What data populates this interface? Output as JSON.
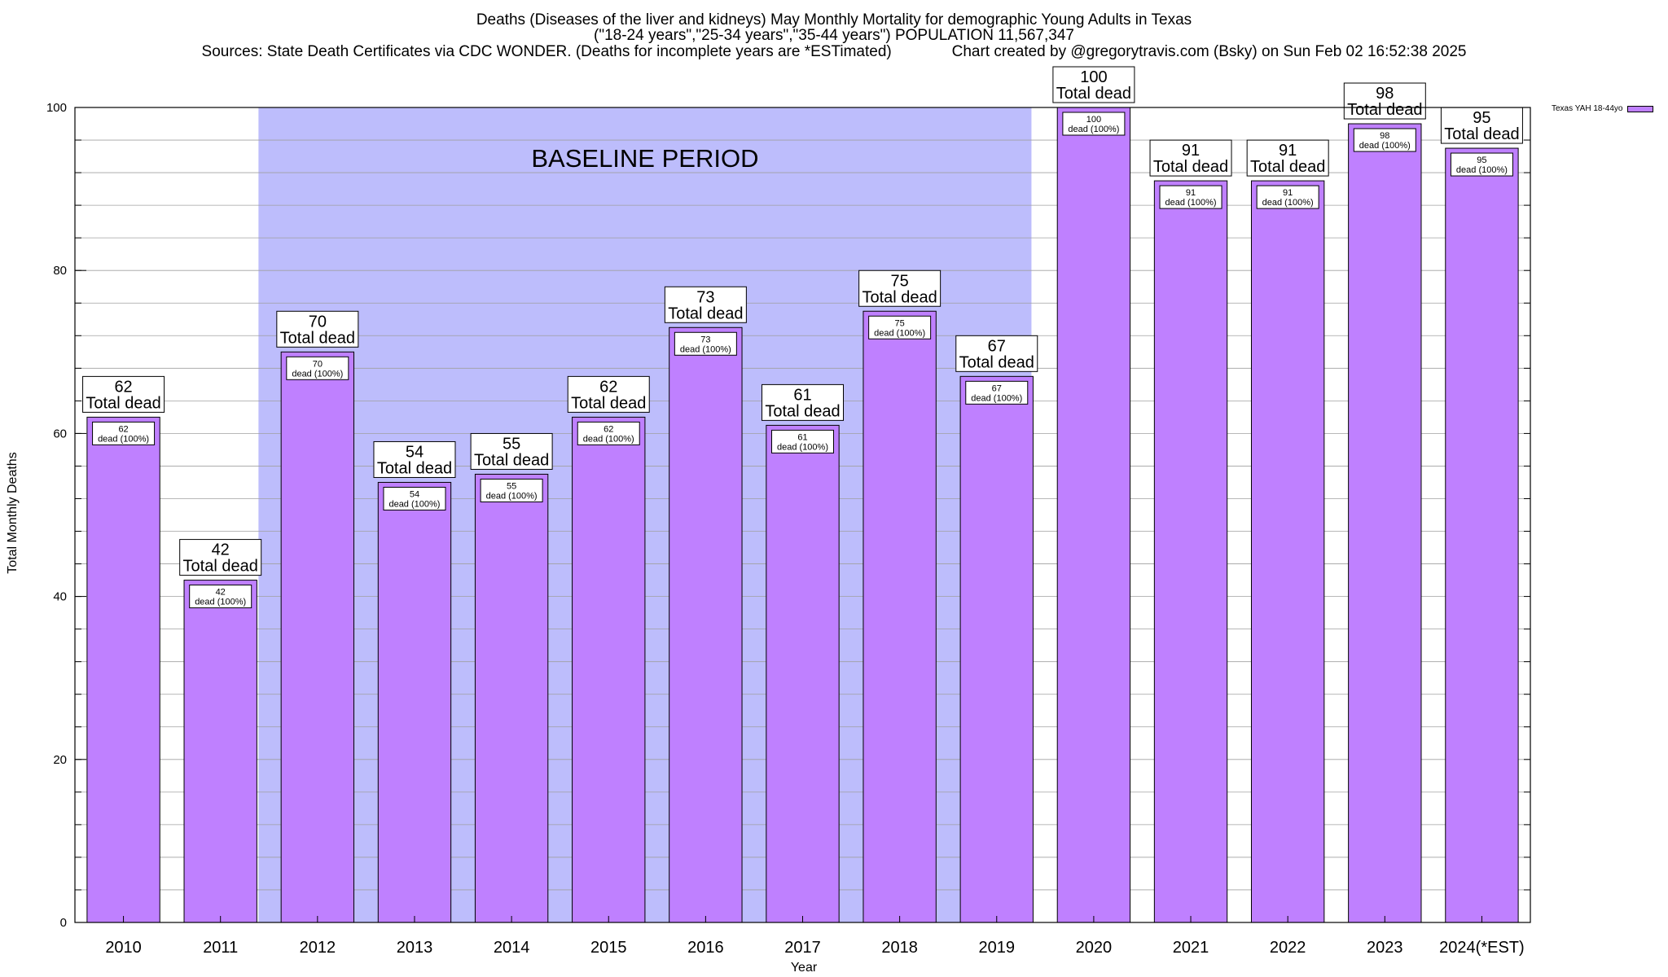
{
  "chart_data": {
    "type": "bar",
    "title_lines": [
      "Deaths (Diseases of the liver and kidneys) May Monthly Mortality for demographic Young Adults in Texas",
      "(\"18-24 years\",\"25-34 years\",\"35-44 years\") POPULATION 11,567,347",
      "Sources: State Death Certificates via CDC WONDER. (Deaths for incomplete years are *ESTimated)              Chart created by @gregorytravis.com (Bsky) on Sun Feb 02 16:52:38 2025"
    ],
    "xlabel": "Year",
    "ylabel": "Total Monthly Deaths",
    "ylim": [
      0,
      100
    ],
    "yticks": [
      0,
      20,
      40,
      60,
      80,
      100
    ],
    "grid": true,
    "legend": {
      "position": "top-right",
      "label": "Texas YAH 18-44yo"
    },
    "categories": [
      "2010",
      "2011",
      "2012",
      "2013",
      "2014",
      "2015",
      "2016",
      "2017",
      "2018",
      "2019",
      "2020",
      "2021",
      "2022",
      "2023",
      "2024(*EST)"
    ],
    "values": [
      62,
      42,
      70,
      54,
      55,
      62,
      73,
      61,
      75,
      67,
      100,
      91,
      91,
      98,
      95
    ],
    "top_label_suffix": "Total dead",
    "inner_label_suffix": "dead (100%)",
    "baseline": {
      "label": "BASELINE PERIOD",
      "start": "2012",
      "end": "2019"
    },
    "colors": {
      "bar": "#bf80ff",
      "baseline": "#bdbdfc",
      "grid": "#a0a0a0"
    }
  }
}
